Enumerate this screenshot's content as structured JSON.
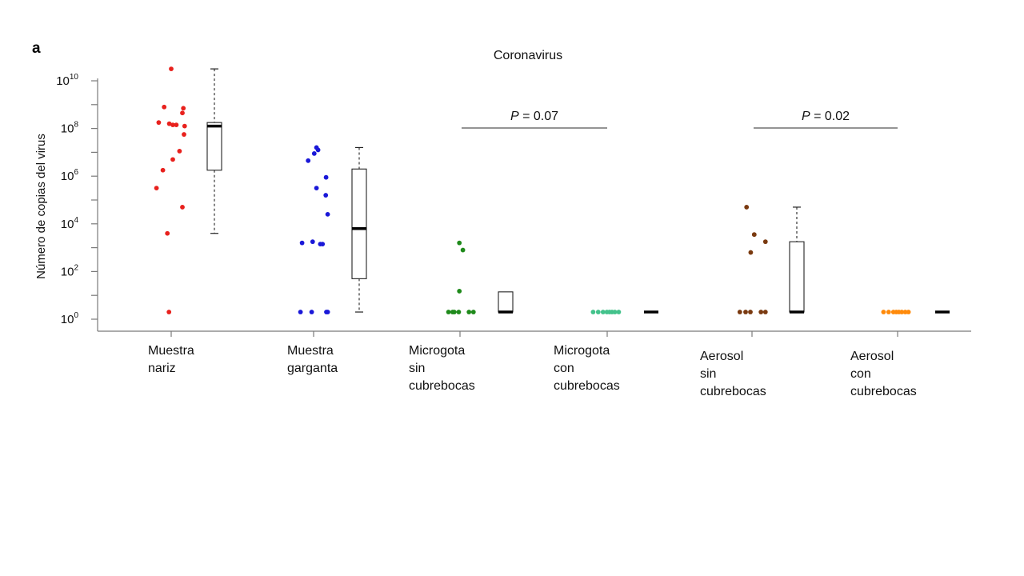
{
  "chart_data": {
    "type": "scatter",
    "panel_label": "a",
    "title": "Coronavirus",
    "ylabel": "Número de copias del virus",
    "yscale": "log",
    "ylim": [
      1,
      31622776601
    ],
    "yticks": [
      {
        "value": 1,
        "base": "10",
        "exp": "0"
      },
      {
        "value": 100,
        "base": "10",
        "exp": "2"
      },
      {
        "value": 10000,
        "base": "10",
        "exp": "4"
      },
      {
        "value": 1000000,
        "base": "10",
        "exp": "6"
      },
      {
        "value": 100000000,
        "base": "10",
        "exp": "8"
      },
      {
        "value": 10000000000,
        "base": "10",
        "exp": "10"
      }
    ],
    "categories": [
      {
        "lines": [
          "Muestra",
          "nariz"
        ]
      },
      {
        "lines": [
          "Muestra",
          "garganta"
        ]
      },
      {
        "lines": [
          "Microgota",
          "sin",
          "cubrebocas"
        ]
      },
      {
        "lines": [
          "Microgota",
          "con",
          "cubrebocas"
        ]
      },
      {
        "lines": [
          "Aerosol",
          "sin",
          "cubrebocas"
        ]
      },
      {
        "lines": [
          "Aerosol",
          "con",
          "cubrebocas"
        ]
      }
    ],
    "series": [
      {
        "color": "#e8211d",
        "points": [
          {
            "jitter": 0.0,
            "y": 31622776601
          },
          {
            "jitter": -0.22,
            "y": 794328234
          },
          {
            "jitter": 0.38,
            "y": 707945784
          },
          {
            "jitter": 0.35,
            "y": 446683592
          },
          {
            "jitter": -0.39,
            "y": 177827941
          },
          {
            "jitter": -0.06,
            "y": 158489319
          },
          {
            "jitter": 0.05,
            "y": 141253754
          },
          {
            "jitter": 0.16,
            "y": 141253754
          },
          {
            "jitter": 0.42,
            "y": 125892541
          },
          {
            "jitter": 0.4,
            "y": 56234132
          },
          {
            "jitter": 0.26,
            "y": 11220184
          },
          {
            "jitter": 0.05,
            "y": 5011872
          },
          {
            "jitter": -0.26,
            "y": 1778279
          },
          {
            "jitter": -0.46,
            "y": 316227
          },
          {
            "jitter": 0.35,
            "y": 50118
          },
          {
            "jitter": -0.12,
            "y": 3981
          },
          {
            "jitter": -0.07,
            "y": 2
          }
        ],
        "box": {
          "whisker_low": 3981,
          "q1": 1778279,
          "median": 125892541,
          "q3": 177827941,
          "whisker_high": 31622776601
        }
      },
      {
        "color": "#1a18d8",
        "points": [
          {
            "jitter": 0.09,
            "y": 15848931
          },
          {
            "jitter": 0.14,
            "y": 12589254
          },
          {
            "jitter": 0.02,
            "y": 8912509
          },
          {
            "jitter": -0.17,
            "y": 4466835
          },
          {
            "jitter": 0.39,
            "y": 891250
          },
          {
            "jitter": 0.09,
            "y": 316227
          },
          {
            "jitter": 0.38,
            "y": 158489
          },
          {
            "jitter": 0.44,
            "y": 25118
          },
          {
            "jitter": -0.36,
            "y": 1584
          },
          {
            "jitter": -0.03,
            "y": 1778
          },
          {
            "jitter": 0.21,
            "y": 1412
          },
          {
            "jitter": 0.28,
            "y": 1412
          },
          {
            "jitter": -0.41,
            "y": 2
          },
          {
            "jitter": -0.06,
            "y": 2
          },
          {
            "jitter": 0.4,
            "y": 2
          },
          {
            "jitter": 0.44,
            "y": 2
          }
        ],
        "box": {
          "whisker_low": 2,
          "q1": 50,
          "median": 6310,
          "q3": 1995262,
          "whisker_high": 15848931
        }
      },
      {
        "color": "#1f8a1b",
        "points": [
          {
            "jitter": -0.02,
            "y": 1584
          },
          {
            "jitter": 0.09,
            "y": 794
          },
          {
            "jitter": -0.02,
            "y": 15
          },
          {
            "jitter": -0.36,
            "y": 2
          },
          {
            "jitter": -0.23,
            "y": 2
          },
          {
            "jitter": -0.18,
            "y": 2
          },
          {
            "jitter": -0.04,
            "y": 2
          },
          {
            "jitter": 0.28,
            "y": 2
          },
          {
            "jitter": 0.42,
            "y": 2
          }
        ],
        "box": {
          "whisker_low": 2,
          "q1": 2,
          "median": 2,
          "q3": 14,
          "whisker_high": 14
        }
      },
      {
        "color": "#43c28b",
        "points": [
          {
            "jitter": -0.44,
            "y": 2
          },
          {
            "jitter": -0.28,
            "y": 2
          },
          {
            "jitter": -0.13,
            "y": 2
          },
          {
            "jitter": -0.01,
            "y": 2
          },
          {
            "jitter": 0.07,
            "y": 2
          },
          {
            "jitter": 0.15,
            "y": 2
          },
          {
            "jitter": 0.24,
            "y": 2
          },
          {
            "jitter": 0.36,
            "y": 2
          }
        ],
        "box": {
          "whisker_low": 2,
          "q1": 2,
          "median": 2,
          "q3": 2,
          "whisker_high": 2
        }
      },
      {
        "color": "#7a3a10",
        "points": [
          {
            "jitter": -0.17,
            "y": 50118
          },
          {
            "jitter": 0.07,
            "y": 3548
          },
          {
            "jitter": 0.42,
            "y": 1778
          },
          {
            "jitter": -0.04,
            "y": 631
          },
          {
            "jitter": -0.38,
            "y": 2
          },
          {
            "jitter": -0.2,
            "y": 2
          },
          {
            "jitter": -0.05,
            "y": 2
          },
          {
            "jitter": 0.28,
            "y": 2
          },
          {
            "jitter": 0.42,
            "y": 2
          }
        ],
        "box": {
          "whisker_low": 2,
          "q1": 2,
          "median": 2,
          "q3": 1778,
          "whisker_high": 50118
        }
      },
      {
        "color": "#ff8a0a",
        "points": [
          {
            "jitter": -0.44,
            "y": 2
          },
          {
            "jitter": -0.28,
            "y": 2
          },
          {
            "jitter": -0.13,
            "y": 2
          },
          {
            "jitter": -0.04,
            "y": 2
          },
          {
            "jitter": 0.04,
            "y": 2
          },
          {
            "jitter": 0.13,
            "y": 2
          },
          {
            "jitter": 0.24,
            "y": 2
          },
          {
            "jitter": 0.34,
            "y": 2
          }
        ],
        "box": {
          "whisker_low": 2,
          "q1": 2,
          "median": 2,
          "q3": 2,
          "whisker_high": 2
        }
      }
    ],
    "comparisons": [
      {
        "groups": [
          2,
          3
        ],
        "label": "P = 0.07"
      },
      {
        "groups": [
          4,
          5
        ],
        "label": "P = 0.02"
      }
    ]
  }
}
